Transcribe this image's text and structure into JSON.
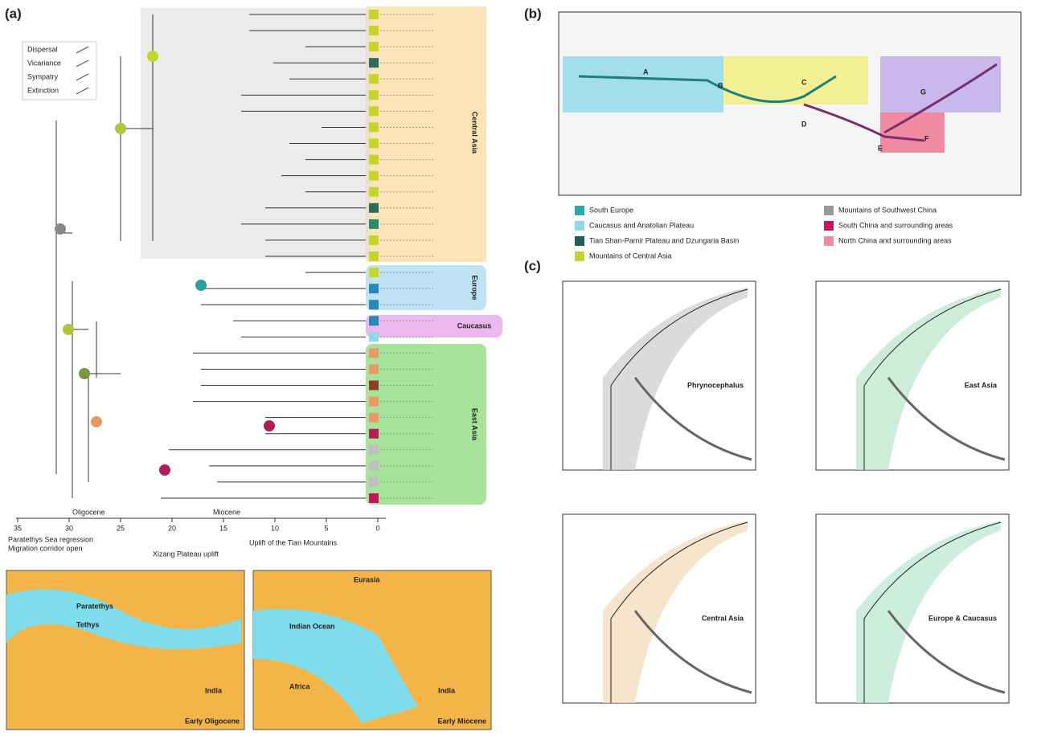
{
  "panel_labels": [
    "(a)",
    "(b)",
    "(c)"
  ],
  "tree": {
    "legend": [
      "Dispersal",
      "Vicariance",
      "Sympatry",
      "Extinction"
    ],
    "regions": [
      "Central Asia",
      "Europe",
      "Caucasus",
      "East Asia"
    ],
    "epochs": [
      "Oligocene",
      "Miocene"
    ],
    "time_ticks": [
      35,
      30,
      25,
      20,
      15,
      10,
      5,
      0
    ],
    "notes": [
      "Paratethys Sea regression",
      "Migration corridor open",
      "Xizang Plateau uplift",
      "Uplift of the Tian Mountains"
    ]
  },
  "maps_a": [
    {
      "labels": [
        "Paratethys",
        "Tethys",
        "India"
      ],
      "title": "Early Oligocene"
    },
    {
      "labels": [
        "Eurasia",
        "Indian Ocean",
        "Africa",
        "India"
      ],
      "title": "Early Miocene"
    }
  ],
  "map_b": {
    "letters": [
      "A",
      "B",
      "C",
      "D",
      "E",
      "F",
      "G"
    ],
    "legend": [
      "South Europe",
      "Caucasus and Anatolian Plateau",
      "Tian Shan-Pamir Plateau and Dzungaria Basin",
      "Mountains of Central Asia",
      "Mountains of Southwest China",
      "South China and surrounding areas",
      "North China and surrounding areas"
    ]
  },
  "ltt": {
    "plots": [
      "Phrynocephalus",
      "East Asia",
      "Central Asia",
      "Europe & Caucasus"
    ]
  }
}
